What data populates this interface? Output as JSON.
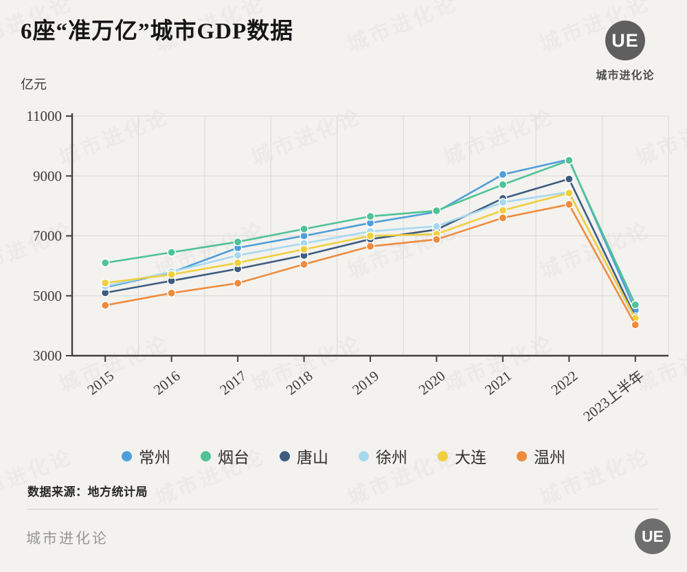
{
  "page": {
    "background": "#f3f2ef"
  },
  "header": {
    "title": "6座“准万亿”城市GDP数据",
    "unit_label": "亿元",
    "logo": {
      "text": "UE",
      "caption": "城市进化论"
    }
  },
  "chart_data": {
    "type": "line",
    "title": "6座“准万亿”城市GDP数据",
    "xlabel": "",
    "ylabel": "亿元",
    "ylim": [
      3000,
      11000
    ],
    "yticks": [
      3000,
      5000,
      7000,
      9000,
      11000
    ],
    "grid": true,
    "legend_position": "bottom",
    "categories": [
      "2015",
      "2016",
      "2017",
      "2018",
      "2019",
      "2020",
      "2021",
      "2022",
      "2023上半年"
    ],
    "series": [
      {
        "name": "常州",
        "color": "#4E9FD9",
        "values": [
          5280,
          5780,
          6600,
          7000,
          7430,
          7800,
          9050,
          9550,
          4520
        ]
      },
      {
        "name": "烟台",
        "color": "#4FC296",
        "values": [
          6100,
          6450,
          6800,
          7230,
          7650,
          7840,
          8710,
          9520,
          4700
        ]
      },
      {
        "name": "唐山",
        "color": "#3E5C80",
        "values": [
          5100,
          5500,
          5900,
          6350,
          6890,
          7210,
          8250,
          8900,
          4300
        ]
      },
      {
        "name": "徐州",
        "color": "#A6D8F0",
        "values": [
          5320,
          5800,
          6350,
          6750,
          7150,
          7320,
          8120,
          8460,
          4200
        ]
      },
      {
        "name": "大连",
        "color": "#F0CF3E",
        "values": [
          5430,
          5710,
          6100,
          6550,
          7000,
          7060,
          7850,
          8430,
          4250
        ]
      },
      {
        "name": "温州",
        "color": "#EE8B3E",
        "values": [
          4680,
          5090,
          5420,
          6050,
          6650,
          6880,
          7600,
          8050,
          4030
        ]
      }
    ]
  },
  "footer": {
    "source": "数据来源：地方统计局",
    "brand": "城市进化论",
    "logo_text": "UE"
  },
  "watermark": {
    "text": "城市进化论"
  }
}
